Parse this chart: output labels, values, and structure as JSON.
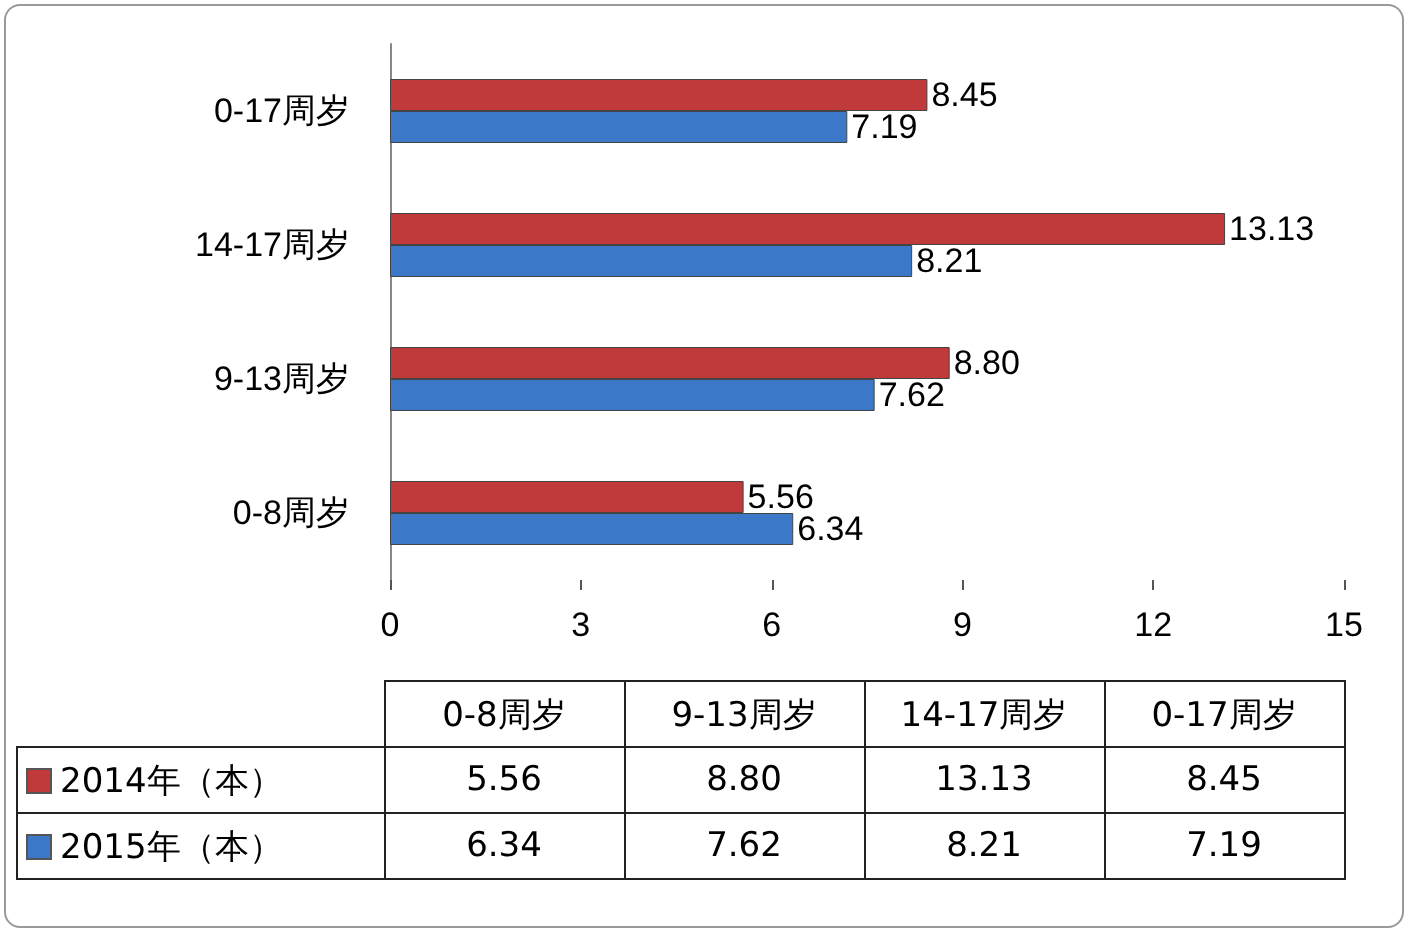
{
  "chart_data": {
    "type": "bar",
    "orientation": "horizontal",
    "categories": [
      "0-17周岁",
      "14-17周岁",
      "9-13周岁",
      "0-8周岁"
    ],
    "series": [
      {
        "name": "2014年（本）",
        "color": "#c0393b",
        "values": [
          8.45,
          13.13,
          8.8,
          5.56
        ],
        "value_labels": [
          "8.45",
          "13.13",
          "8.80",
          "5.56"
        ]
      },
      {
        "name": "2015年（本）",
        "color": "#3c78c8",
        "values": [
          7.19,
          8.21,
          7.62,
          6.34
        ],
        "value_labels": [
          "7.19",
          "8.21",
          "7.62",
          "6.34"
        ]
      }
    ],
    "xlim": [
      0,
      15
    ],
    "xticks": [
      0,
      3,
      6,
      9,
      12,
      15
    ],
    "grid": false,
    "legend": "bottom"
  }
}
